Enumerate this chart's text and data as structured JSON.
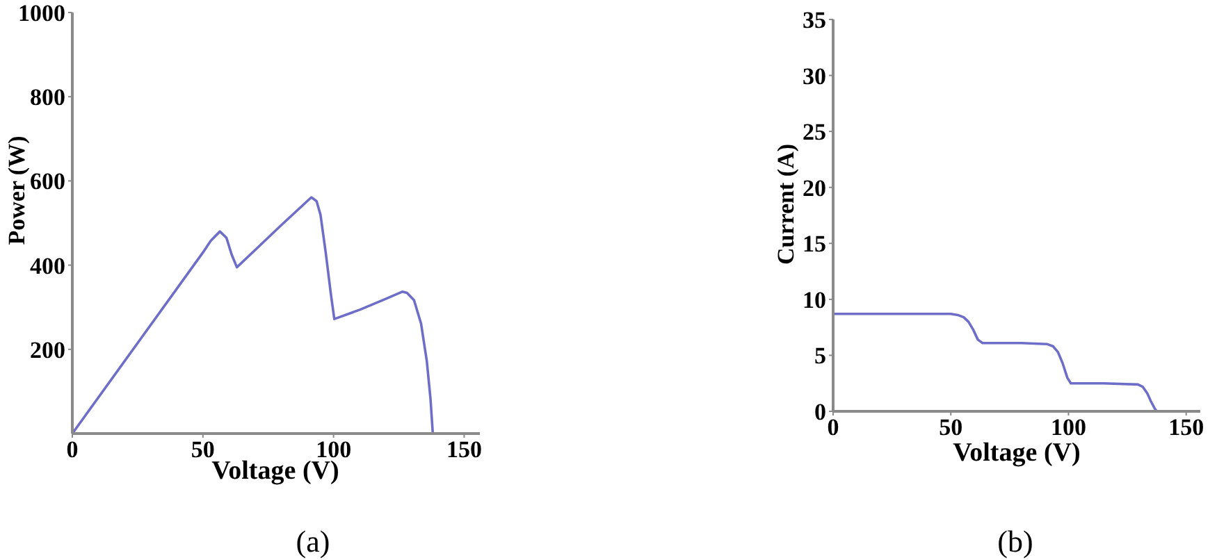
{
  "chart_data": [
    {
      "type": "line",
      "xlabel": "Voltage (V)",
      "ylabel": "Power (W)",
      "x": [
        0,
        25,
        50,
        53,
        56.5,
        59,
        61,
        63,
        70,
        80,
        91.5,
        93.5,
        95,
        97,
        99,
        100.3,
        110,
        120,
        126.3,
        128.1,
        130.8,
        133.5,
        135.7,
        137.1,
        138
      ],
      "series": [
        {
          "color": "#6e6ec8",
          "values": [
            0,
            215,
            430,
            458,
            480,
            465,
            425,
            395,
            436,
            495,
            561,
            552,
            520,
            430,
            330,
            272,
            294,
            320,
            337,
            334,
            317,
            261,
            172,
            83,
            0
          ]
        }
      ],
      "xlim": [
        0,
        156
      ],
      "ylim": [
        0,
        1000
      ],
      "xticks": [
        0,
        50,
        100,
        150
      ],
      "yticks": [
        200,
        400,
        600,
        800,
        1000
      ],
      "marker": "none",
      "line_style": "solid",
      "annotations": [
        "(a)"
      ]
    },
    {
      "type": "line",
      "xlabel": "Voltage (V)",
      "ylabel": "Current (A)",
      "x": [
        0,
        50,
        53,
        55.5,
        57.5,
        59.5,
        61.5,
        63.5,
        80,
        91,
        93.5,
        95.5,
        97.5,
        99.5,
        101,
        115,
        129.5,
        131.5,
        133.5,
        135,
        136.5,
        137.5
      ],
      "series": [
        {
          "color": "#6e6ec8",
          "values": [
            8.7,
            8.7,
            8.6,
            8.4,
            8,
            7.3,
            6.4,
            6.1,
            6.1,
            6,
            5.8,
            5.3,
            4.3,
            3,
            2.5,
            2.5,
            2.4,
            2.2,
            1.6,
            0.9,
            0.3,
            0
          ]
        }
      ],
      "xlim": [
        0,
        156
      ],
      "ylim": [
        0,
        35
      ],
      "xticks": [
        0,
        50,
        100,
        150
      ],
      "yticks": [
        0,
        5,
        10,
        15,
        20,
        25,
        30,
        35
      ],
      "marker": "none",
      "line_style": "solid",
      "annotations": [
        "(b)"
      ]
    }
  ]
}
